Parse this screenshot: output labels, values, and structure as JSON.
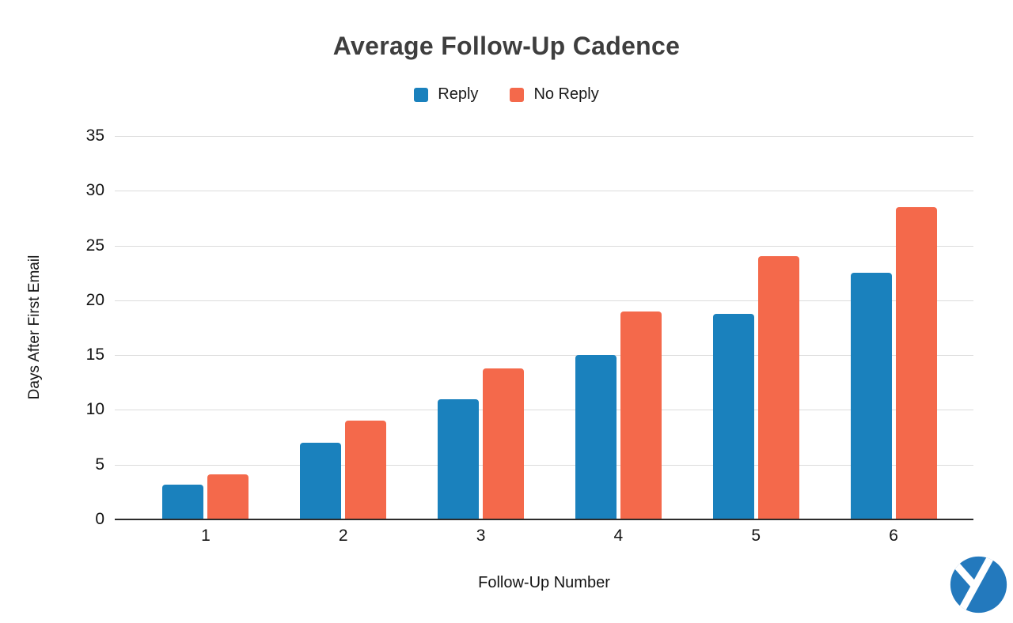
{
  "chart_data": {
    "type": "bar",
    "title": "Average Follow-Up Cadence",
    "categories": [
      "1",
      "2",
      "3",
      "4",
      "5",
      "6"
    ],
    "series": [
      {
        "name": "Reply",
        "color": "#1A81BD",
        "values": [
          3.2,
          7,
          11,
          15,
          18.8,
          22.5
        ]
      },
      {
        "name": "No Reply",
        "color": "#F4694B",
        "values": [
          4.1,
          9,
          13.8,
          19,
          24,
          28.5
        ]
      }
    ],
    "xlabel": "Follow-Up Number",
    "ylabel": "Days After First Email",
    "ylim": [
      0,
      35
    ],
    "y_ticks": [
      0,
      5,
      10,
      15,
      20,
      25,
      30,
      35
    ],
    "grid": true,
    "legend_position": "top-center",
    "background": "#ffffff",
    "gridline_color": "#dcdcdc",
    "axis_line_color": "#2b2b2b",
    "title_color": "#3e3e3e",
    "tick_label_color": "#141414"
  },
  "logo": {
    "icon_name": "yesware-logo",
    "glyph": "y",
    "circle_color": "#2379BD",
    "glyph_color": "#ffffff"
  }
}
